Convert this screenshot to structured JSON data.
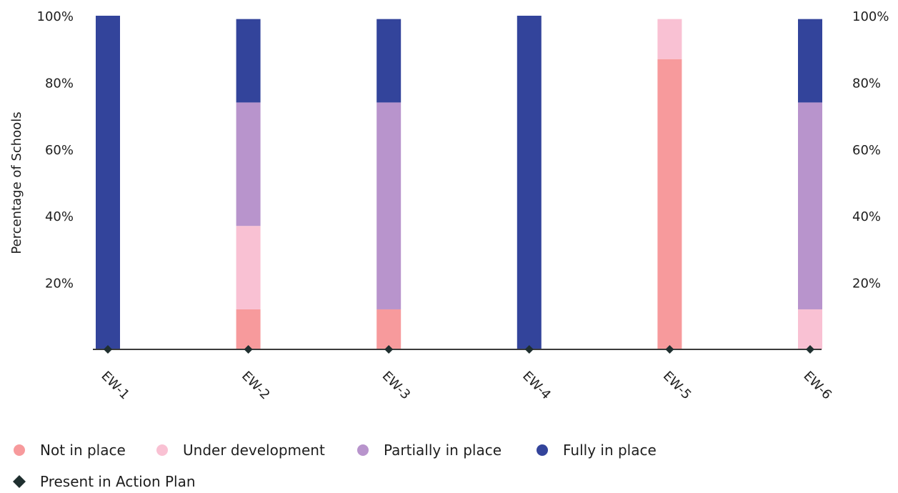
{
  "chart_data": {
    "type": "bar",
    "stacked": true,
    "categories": [
      "EW-1",
      "EW-2",
      "EW-3",
      "EW-4",
      "EW-5",
      "EW-6"
    ],
    "series": [
      {
        "name": "Not in place",
        "color": "#f79a9c",
        "values": [
          0,
          12,
          12,
          0,
          87,
          0
        ]
      },
      {
        "name": "Under development",
        "color": "#f9c1d3",
        "values": [
          0,
          25,
          0,
          0,
          12,
          12
        ]
      },
      {
        "name": "Partially in place",
        "color": "#b894cc",
        "values": [
          0,
          37,
          62,
          0,
          0,
          62
        ]
      },
      {
        "name": "Fully in place",
        "color": "#33449b",
        "values": [
          100,
          25,
          25,
          100,
          0,
          25
        ]
      }
    ],
    "markers": {
      "name": "Present in Action Plan",
      "color": "#1f2f2f",
      "values": [
        0,
        0,
        0,
        0,
        0,
        0
      ]
    },
    "yticks": [
      "20%",
      "40%",
      "60%",
      "80%",
      "100%"
    ],
    "ytick_values": [
      20,
      40,
      60,
      80,
      100
    ],
    "ylabel": "Percentage of Schools",
    "ylim": [
      0,
      100
    ],
    "grid": false,
    "legend_position": "bottom-left"
  }
}
